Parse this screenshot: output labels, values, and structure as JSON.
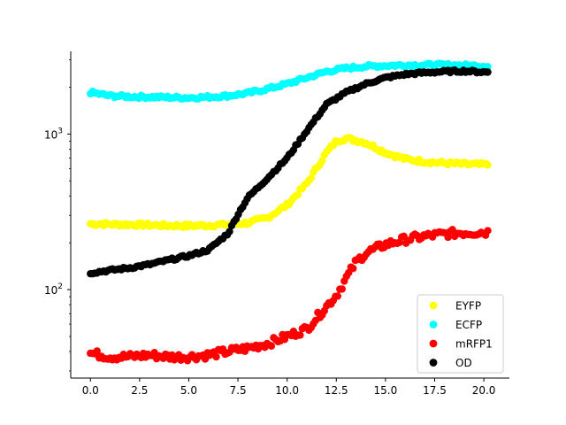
{
  "chart_data": {
    "type": "scatter",
    "title": "",
    "xlabel": "",
    "ylabel": "",
    "xlim": [
      -1.0,
      21.3
    ],
    "ylim": [
      27,
      3400
    ],
    "yscale": "log",
    "xticks": [
      0.0,
      2.5,
      5.0,
      7.5,
      10.0,
      12.5,
      15.0,
      17.5,
      20.0
    ],
    "xtick_labels": [
      "0.0",
      "2.5",
      "5.0",
      "7.5",
      "10.0",
      "12.5",
      "15.0",
      "17.5",
      "20.0"
    ],
    "yticks": [
      100,
      1000
    ],
    "ytick_labels": [
      "10^2",
      "10^3"
    ],
    "grid": false,
    "legend_position": "lower-right",
    "series": [
      {
        "name": "EYFP",
        "color": "#ffff00",
        "x": [
          0,
          1,
          2,
          3,
          4,
          5,
          6,
          7,
          8,
          9,
          10,
          11,
          12,
          12.5,
          13,
          14,
          15,
          16,
          17,
          18,
          19,
          20
        ],
        "y": [
          265,
          263,
          262,
          260,
          258,
          257,
          259,
          262,
          268,
          290,
          350,
          480,
          760,
          900,
          940,
          880,
          760,
          690,
          665,
          650,
          640,
          635
        ]
      },
      {
        "name": "ECFP",
        "color": "#00ffff",
        "x": [
          0,
          1,
          2,
          3,
          4,
          5,
          6,
          7,
          8,
          9,
          10,
          11,
          12,
          13,
          14,
          15,
          16,
          17,
          18,
          19,
          20
        ],
        "y": [
          1850,
          1760,
          1740,
          1730,
          1720,
          1710,
          1730,
          1760,
          1830,
          1950,
          2100,
          2300,
          2520,
          2650,
          2720,
          2750,
          2770,
          2780,
          2780,
          2760,
          2740
        ]
      },
      {
        "name": "mRFP1",
        "color": "#ff0000",
        "x": [
          0,
          1,
          2,
          3,
          4,
          5,
          6,
          7,
          8,
          9,
          10,
          11,
          11.5,
          12,
          12.5,
          13,
          13.5,
          14,
          15,
          16,
          17,
          18,
          19,
          20
        ],
        "y": [
          39,
          37,
          37,
          38,
          37,
          37,
          38,
          40,
          42,
          45,
          50,
          56,
          66,
          78,
          92,
          118,
          150,
          172,
          195,
          210,
          220,
          228,
          232,
          234
        ]
      },
      {
        "name": "OD",
        "color": "#000000",
        "x": [
          0,
          1,
          2,
          3,
          4,
          5,
          6,
          7,
          7.5,
          8,
          8.5,
          9,
          10,
          11,
          12,
          13,
          14,
          15,
          16,
          17,
          18,
          19,
          20
        ],
        "y": [
          128,
          133,
          138,
          145,
          155,
          165,
          180,
          230,
          305,
          390,
          450,
          520,
          700,
          1050,
          1550,
          1850,
          2100,
          2300,
          2420,
          2480,
          2520,
          2540,
          2500
        ]
      }
    ]
  }
}
